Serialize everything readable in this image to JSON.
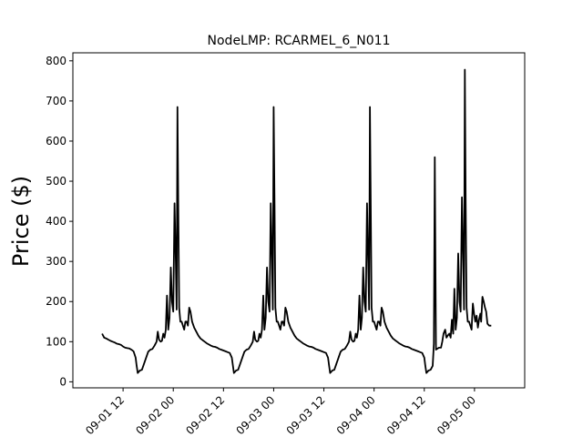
{
  "chart_data": {
    "type": "line",
    "title": "NodeLMP: RCARMEL_6_N011",
    "xlabel": "",
    "ylabel": "Price ($)",
    "x_range_hours": [
      0,
      108
    ],
    "ylim": [
      -15,
      820
    ],
    "grid": false,
    "line_color": "#000000",
    "x_ticks": [
      {
        "hours": 12,
        "label": "09-01 12"
      },
      {
        "hours": 24,
        "label": "09-02 00"
      },
      {
        "hours": 36,
        "label": "09-02 12"
      },
      {
        "hours": 48,
        "label": "09-03 00"
      },
      {
        "hours": 60,
        "label": "09-03 12"
      },
      {
        "hours": 72,
        "label": "09-04 00"
      },
      {
        "hours": 84,
        "label": "09-04 12"
      },
      {
        "hours": 96,
        "label": "09-05 00"
      }
    ],
    "y_ticks": [
      0,
      100,
      200,
      300,
      400,
      500,
      600,
      700,
      800
    ],
    "series": [
      {
        "name": "",
        "points": [
          [
            7,
            120
          ],
          [
            7.5,
            110
          ],
          [
            8,
            108
          ],
          [
            8.5,
            105
          ],
          [
            9,
            102
          ],
          [
            9.5,
            100
          ],
          [
            10,
            98
          ],
          [
            10.5,
            95
          ],
          [
            11,
            94
          ],
          [
            11.5,
            92
          ],
          [
            12,
            88
          ],
          [
            12.5,
            85
          ],
          [
            13,
            84
          ],
          [
            13.5,
            83
          ],
          [
            14,
            80
          ],
          [
            14.5,
            76
          ],
          [
            15,
            60
          ],
          [
            15.25,
            40
          ],
          [
            15.5,
            22
          ],
          [
            15.75,
            25
          ],
          [
            16,
            28
          ],
          [
            16.5,
            30
          ],
          [
            17,
            45
          ],
          [
            17.5,
            60
          ],
          [
            18,
            75
          ],
          [
            18.5,
            80
          ],
          [
            19,
            82
          ],
          [
            19.5,
            90
          ],
          [
            20,
            100
          ],
          [
            20.3,
            125
          ],
          [
            20.6,
            105
          ],
          [
            21,
            100
          ],
          [
            21.3,
            102
          ],
          [
            21.6,
            120
          ],
          [
            21.9,
            110
          ],
          [
            22.2,
            130
          ],
          [
            22.5,
            215
          ],
          [
            22.8,
            130
          ],
          [
            23.1,
            160
          ],
          [
            23.4,
            285
          ],
          [
            23.7,
            200
          ],
          [
            24,
            175
          ],
          [
            24.3,
            445
          ],
          [
            24.6,
            300
          ],
          [
            24.8,
            180
          ],
          [
            25,
            685
          ],
          [
            25.2,
            440
          ],
          [
            25.4,
            185
          ],
          [
            25.7,
            150
          ],
          [
            26,
            150
          ],
          [
            26.3,
            140
          ],
          [
            26.6,
            130
          ],
          [
            26.9,
            150
          ],
          [
            27.2,
            150
          ],
          [
            27.5,
            140
          ],
          [
            27.8,
            185
          ],
          [
            28.1,
            175
          ],
          [
            28.5,
            150
          ],
          [
            29,
            135
          ],
          [
            29.5,
            125
          ],
          [
            30,
            115
          ],
          [
            30.5,
            108
          ],
          [
            31,
            104
          ],
          [
            31.5,
            100
          ],
          [
            32,
            96
          ],
          [
            32.5,
            93
          ],
          [
            33,
            90
          ],
          [
            33.5,
            88
          ],
          [
            34,
            87
          ],
          [
            34.5,
            85
          ],
          [
            35,
            82
          ],
          [
            35.5,
            80
          ],
          [
            36,
            78
          ],
          [
            36.5,
            76
          ],
          [
            37,
            74
          ],
          [
            37.5,
            72
          ],
          [
            38,
            60
          ],
          [
            38.25,
            40
          ],
          [
            38.5,
            22
          ],
          [
            38.75,
            25
          ],
          [
            39,
            28
          ],
          [
            39.5,
            30
          ],
          [
            40,
            45
          ],
          [
            40.5,
            60
          ],
          [
            41,
            75
          ],
          [
            41.5,
            80
          ],
          [
            42,
            82
          ],
          [
            42.5,
            90
          ],
          [
            43,
            100
          ],
          [
            43.3,
            125
          ],
          [
            43.6,
            105
          ],
          [
            44,
            100
          ],
          [
            44.3,
            102
          ],
          [
            44.6,
            120
          ],
          [
            44.9,
            110
          ],
          [
            45.2,
            130
          ],
          [
            45.5,
            215
          ],
          [
            45.8,
            130
          ],
          [
            46.1,
            160
          ],
          [
            46.4,
            285
          ],
          [
            46.7,
            200
          ],
          [
            47,
            175
          ],
          [
            47.3,
            445
          ],
          [
            47.6,
            300
          ],
          [
            47.8,
            180
          ],
          [
            48,
            685
          ],
          [
            48.2,
            440
          ],
          [
            48.4,
            185
          ],
          [
            48.7,
            150
          ],
          [
            49,
            150
          ],
          [
            49.3,
            140
          ],
          [
            49.6,
            130
          ],
          [
            49.9,
            150
          ],
          [
            50.2,
            150
          ],
          [
            50.5,
            140
          ],
          [
            50.8,
            185
          ],
          [
            51.1,
            175
          ],
          [
            51.5,
            150
          ],
          [
            52,
            135
          ],
          [
            52.5,
            125
          ],
          [
            53,
            115
          ],
          [
            53.5,
            108
          ],
          [
            54,
            104
          ],
          [
            54.5,
            100
          ],
          [
            55,
            96
          ],
          [
            55.5,
            93
          ],
          [
            56,
            90
          ],
          [
            56.5,
            88
          ],
          [
            57,
            87
          ],
          [
            57.5,
            85
          ],
          [
            58,
            82
          ],
          [
            58.5,
            80
          ],
          [
            59,
            78
          ],
          [
            59.5,
            76
          ],
          [
            60,
            74
          ],
          [
            60.5,
            72
          ],
          [
            61,
            60
          ],
          [
            61.25,
            40
          ],
          [
            61.5,
            22
          ],
          [
            61.75,
            25
          ],
          [
            62,
            28
          ],
          [
            62.5,
            30
          ],
          [
            63,
            45
          ],
          [
            63.5,
            60
          ],
          [
            64,
            75
          ],
          [
            64.5,
            80
          ],
          [
            65,
            82
          ],
          [
            65.5,
            90
          ],
          [
            66,
            100
          ],
          [
            66.3,
            125
          ],
          [
            66.6,
            105
          ],
          [
            67,
            100
          ],
          [
            67.3,
            102
          ],
          [
            67.6,
            120
          ],
          [
            67.9,
            110
          ],
          [
            68.2,
            130
          ],
          [
            68.5,
            215
          ],
          [
            68.8,
            130
          ],
          [
            69.1,
            160
          ],
          [
            69.4,
            285
          ],
          [
            69.7,
            200
          ],
          [
            70,
            175
          ],
          [
            70.3,
            445
          ],
          [
            70.6,
            300
          ],
          [
            70.8,
            180
          ],
          [
            71,
            685
          ],
          [
            71.2,
            440
          ],
          [
            71.4,
            185
          ],
          [
            71.7,
            150
          ],
          [
            72,
            150
          ],
          [
            72.3,
            140
          ],
          [
            72.6,
            130
          ],
          [
            72.9,
            150
          ],
          [
            73.2,
            150
          ],
          [
            73.5,
            140
          ],
          [
            73.8,
            185
          ],
          [
            74.1,
            175
          ],
          [
            74.5,
            150
          ],
          [
            75,
            135
          ],
          [
            75.5,
            125
          ],
          [
            76,
            115
          ],
          [
            76.5,
            108
          ],
          [
            77,
            104
          ],
          [
            77.5,
            100
          ],
          [
            78,
            96
          ],
          [
            78.5,
            93
          ],
          [
            79,
            90
          ],
          [
            79.5,
            88
          ],
          [
            80,
            87
          ],
          [
            80.5,
            85
          ],
          [
            81,
            82
          ],
          [
            81.5,
            80
          ],
          [
            82,
            78
          ],
          [
            82.5,
            76
          ],
          [
            83,
            74
          ],
          [
            83.5,
            72
          ],
          [
            84,
            60
          ],
          [
            84.25,
            40
          ],
          [
            84.5,
            22
          ],
          [
            84.75,
            25
          ],
          [
            85,
            28
          ],
          [
            85.5,
            30
          ],
          [
            86,
            40
          ],
          [
            86.3,
            95
          ],
          [
            86.5,
            560
          ],
          [
            86.8,
            80
          ],
          [
            87,
            82
          ],
          [
            87.5,
            85
          ],
          [
            88,
            85
          ],
          [
            88.3,
            100
          ],
          [
            88.6,
            120
          ],
          [
            89,
            130
          ],
          [
            89.3,
            110
          ],
          [
            89.6,
            115
          ],
          [
            90,
            120
          ],
          [
            90.3,
            110
          ],
          [
            90.6,
            155
          ],
          [
            90.9,
            120
          ],
          [
            91.2,
            232
          ],
          [
            91.5,
            130
          ],
          [
            91.8,
            160
          ],
          [
            92.1,
            320
          ],
          [
            92.4,
            200
          ],
          [
            92.7,
            175
          ],
          [
            93,
            460
          ],
          [
            93.3,
            300
          ],
          [
            93.5,
            180
          ],
          [
            93.7,
            778
          ],
          [
            93.9,
            450
          ],
          [
            94.1,
            185
          ],
          [
            94.4,
            150
          ],
          [
            94.7,
            150
          ],
          [
            95,
            140
          ],
          [
            95.3,
            130
          ],
          [
            95.6,
            195
          ],
          [
            95.9,
            170
          ],
          [
            96.2,
            150
          ],
          [
            96.5,
            165
          ],
          [
            96.8,
            135
          ],
          [
            97.1,
            155
          ],
          [
            97.4,
            170
          ],
          [
            97.6,
            150
          ],
          [
            97.9,
            212
          ],
          [
            98.2,
            200
          ],
          [
            98.5,
            185
          ],
          [
            98.8,
            175
          ],
          [
            99.1,
            145
          ],
          [
            99.5,
            140
          ],
          [
            100,
            140
          ]
        ]
      }
    ]
  }
}
